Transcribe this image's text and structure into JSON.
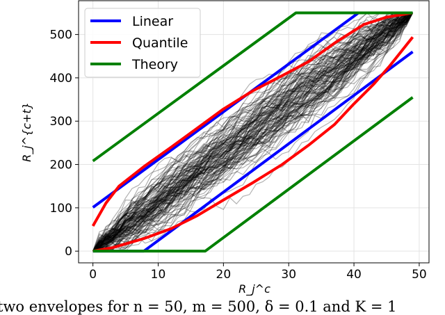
{
  "chart_data": {
    "type": "line",
    "title": "",
    "xlabel": "R_j^c",
    "ylabel": "R_j^{c+t}",
    "xlim": [
      -2.2,
      51.5
    ],
    "ylim": [
      -27,
      578
    ],
    "xticks": [
      0,
      10,
      20,
      30,
      40,
      50
    ],
    "yticks": [
      0,
      100,
      200,
      300,
      400,
      500
    ],
    "grid": true,
    "legend_position": "top-left",
    "legend": [
      "Linear",
      "Quantile",
      "Theory"
    ],
    "colors": {
      "Linear": "#0000ff",
      "Quantile": "#ff0000",
      "Theory": "#008000",
      "traces": "#000000"
    },
    "series": [
      {
        "name": "Linear",
        "part": "upper",
        "x": [
          0,
          40.7,
          49
        ],
        "y": [
          101,
          550,
          550
        ]
      },
      {
        "name": "Linear",
        "part": "lower",
        "x": [
          0,
          7.8,
          49
        ],
        "y": [
          0,
          0,
          460
        ]
      },
      {
        "name": "Quantile",
        "part": "upper",
        "x": [
          0,
          2,
          4,
          7.8,
          12,
          16,
          20,
          24.5,
          29,
          33,
          37,
          41.5,
          45,
          49
        ],
        "y": [
          58,
          111,
          150,
          195,
          240,
          284,
          328,
          370,
          405,
          437,
          480,
          523,
          540,
          550
        ]
      },
      {
        "name": "Quantile",
        "part": "lower",
        "x": [
          0,
          3,
          7.8,
          12,
          16,
          20,
          24.5,
          29,
          33,
          37,
          40,
          43,
          45.4,
          49
        ],
        "y": [
          0,
          8,
          29,
          52,
          82,
          118,
          158,
          200,
          244,
          292,
          340,
          385,
          426,
          494
        ]
      },
      {
        "name": "Theory",
        "part": "upper",
        "x": [
          0,
          31.1,
          49
        ],
        "y": [
          208,
          550,
          550
        ]
      },
      {
        "name": "Theory",
        "part": "lower",
        "x": [
          0,
          17.2,
          49
        ],
        "y": [
          0,
          0,
          355
        ]
      }
    ],
    "traces": {
      "count": 120,
      "n_points": 50,
      "start": 0,
      "end": 550,
      "spread": 38,
      "opacity": 0.3
    }
  },
  "caption": "two envelopes for n = 50, m = 500, δ = 0.1 and K = 1"
}
